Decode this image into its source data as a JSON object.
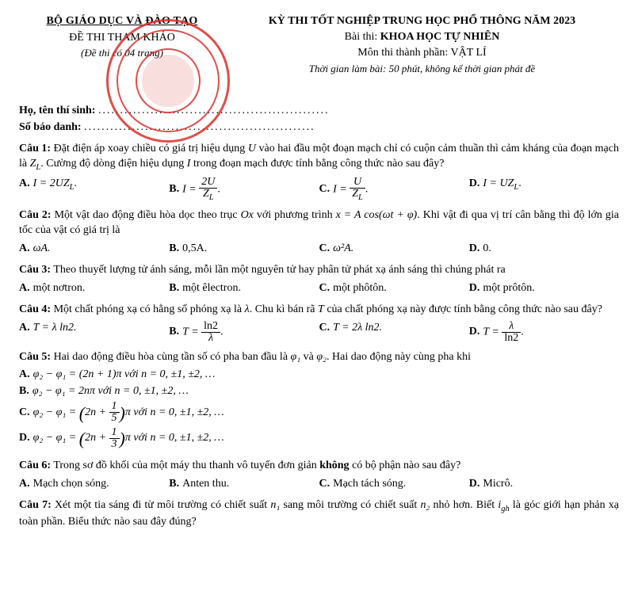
{
  "header": {
    "ministry": "BỘ GIÁO DỤC VÀ ĐÀO TẠO",
    "ref": "ĐỀ THI THAM KHẢO",
    "pages": "(Đề thi có 04 trang)",
    "exam_title": "KỲ THI TỐT NGHIỆP TRUNG HỌC PHỔ THÔNG NĂM 2023",
    "subject_prefix": "Bài thi:",
    "subject": "KHOA HỌC TỰ NHIÊN",
    "component_prefix": "Môn thi thành phần:",
    "component": "VẬT LÍ",
    "time": "Thời gian làm bài: 50 phút, không kể thời gian phát đề"
  },
  "candidate": {
    "name_label": "Họ, tên thí sinh:",
    "id_label": "Số báo danh:",
    "dots": "....................................................."
  },
  "q1": {
    "label": "Câu 1:",
    "text_a": "Đặt điện áp xoay chiều có giá trị hiệu dụng ",
    "U": "U",
    "text_b": " vào hai đầu một đoạn mạch chỉ có cuộn cảm thuần thì cảm kháng của đoạn mạch là ",
    "ZL": "Z",
    "text_c": ". Cường độ dòng điện hiệu dụng ",
    "I": "I",
    "text_d": " trong đoạn mạch được tính bằng công thức nào sau đây?",
    "A": "I = 2UZ",
    "A2": ".",
    "B_pre": "I = ",
    "B_num": "2U",
    "B_den": "Z",
    "B2": ".",
    "C_pre": "I = ",
    "C_num": "U",
    "C_den": "Z",
    "C2": ".",
    "D": "I = UZ",
    "D2": "."
  },
  "q2": {
    "label": "Câu 2:",
    "text_a": "Một vật dao động điều hòa dọc theo trục ",
    "Ox": "Ox",
    "text_b": " với phương trình ",
    "eq": "x = A cos(ωt + φ)",
    "text_c": ". Khi vật đi qua vị trí cân bằng thì độ lớn gia tốc của vật có giá trị là",
    "A": "ωA.",
    "B": "0,5A.",
    "C": "ω²A.",
    "D": "0."
  },
  "q3": {
    "label": "Câu 3:",
    "text": "Theo thuyết lượng tử ánh sáng, mỗi lần một nguyên tử hay phân tử phát xạ ánh sáng thì chúng phát ra",
    "A": "một nơtron.",
    "B": "một êlectron.",
    "C": "một phôtôn.",
    "D": "một prôtôn."
  },
  "q4": {
    "label": "Câu 4:",
    "text_a": "Một chất phóng xạ có hằng số phóng xạ là ",
    "lambda": "λ",
    "text_b": ". Chu kì bán rã ",
    "T": "T",
    "text_c": " của chất phóng xạ này được tính bằng công thức nào sau đây?",
    "A": "T = λ ln2.",
    "B_pre": "T = ",
    "B_num": "ln2",
    "B_den": "λ",
    "B2": ".",
    "C": "T = 2λ ln2.",
    "D_pre": "T = ",
    "D_num": "λ",
    "D_den": "ln2",
    "D2": "."
  },
  "q5": {
    "label": "Câu 5:",
    "text_a": "Hai dao động điều hòa cùng tần số có pha ban đầu là ",
    "phi1": "φ₁",
    "and": " và ",
    "phi2": "φ₂",
    "text_b": ". Hai dao động này cùng pha khi",
    "A": "φ₂ − φ₁ = (2n + 1)π với n = 0, ±1, ±2, …",
    "B": "φ₂ − φ₁ = 2nπ với n = 0, ±1, ±2, …",
    "C_pre": "φ₂ − φ₁ = ",
    "C_open": "(",
    "C_in": "2n + ",
    "C_num": "1",
    "C_den": "5",
    "C_close": ")",
    "C_tail": "π với n = 0, ±1, ±2, …",
    "D_pre": "φ₂ − φ₁ = ",
    "D_open": "(",
    "D_in": "2n + ",
    "D_num": "1",
    "D_den": "3",
    "D_close": ")",
    "D_tail": "π với n = 0, ±1, ±2, …"
  },
  "q6": {
    "label": "Câu 6:",
    "text_a": "Trong sơ đồ khối của một máy thu thanh vô tuyến đơn giản ",
    "bold": "không",
    "text_b": " có bộ phận nào sau đây?",
    "A": "Mạch chọn sóng.",
    "B": "Anten thu.",
    "C": "Mạch tách sóng.",
    "D": "Micrô."
  },
  "q7": {
    "label": "Câu 7:",
    "text_a": "Xét một tia sáng đi từ môi trường có chiết suất ",
    "n1": "n₁",
    "text_b": " sang môi trường có chiết suất ",
    "n2": "n₂",
    "text_c": " nhỏ hơn. Biết ",
    "igh": "i",
    "text_d": " là góc giới hạn phản xạ toàn phần. Biểu thức nào sau đây đúng?"
  },
  "opt_labels": {
    "A": "A.",
    "B": "B.",
    "C": "C.",
    "D": "D."
  }
}
